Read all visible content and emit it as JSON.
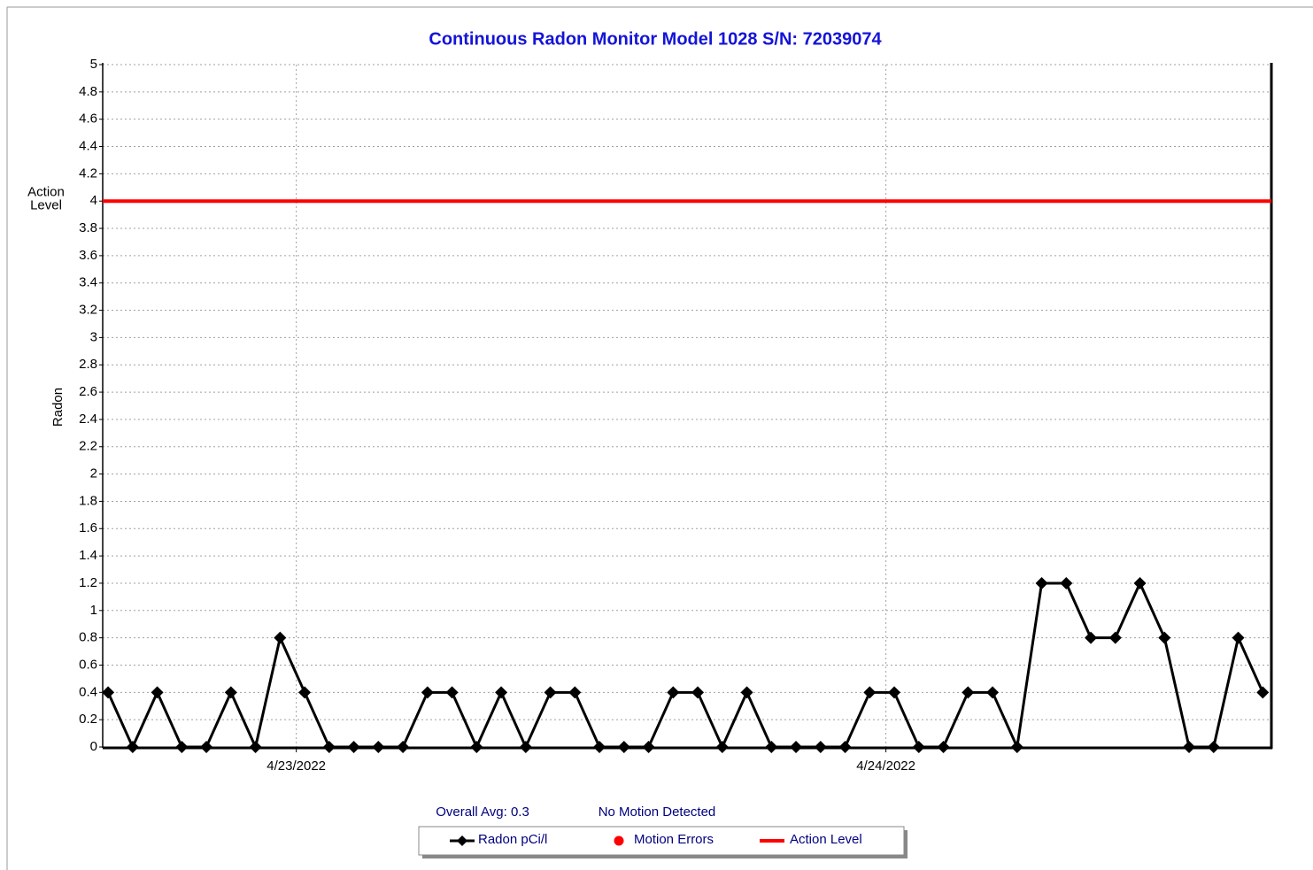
{
  "chart_data": {
    "type": "line",
    "title": "Continuous Radon Monitor Model 1028 S/N: 72039074",
    "ylabel": "Radon",
    "x": [
      0,
      1,
      2,
      3,
      4,
      5,
      6,
      7,
      8,
      9,
      10,
      11,
      12,
      13,
      14,
      15,
      16,
      17,
      18,
      19,
      20,
      21,
      22,
      23,
      24,
      25,
      26,
      27,
      28,
      29,
      30,
      31,
      32,
      33,
      34,
      35,
      36,
      37,
      38,
      39,
      40,
      41,
      42,
      43,
      44,
      45,
      46,
      47
    ],
    "xlim": [
      -0.22,
      47.35
    ],
    "xticks": [
      {
        "value": 7.66,
        "label": "4/23/2022"
      },
      {
        "value": 31.66,
        "label": "4/24/2022"
      }
    ],
    "ylim": [
      0,
      5
    ],
    "yticks": [
      0,
      0.2,
      0.4,
      0.6,
      0.8,
      1,
      1.2,
      1.4,
      1.6,
      1.8,
      2,
      2.2,
      2.4,
      2.6,
      2.8,
      3,
      3.2,
      3.4,
      3.6,
      3.8,
      4,
      4.2,
      4.4,
      4.6,
      4.8,
      5
    ],
    "grid": true,
    "series": [
      {
        "name": "Radon pCi/l",
        "color": "#000000",
        "marker": "diamond",
        "values": [
          0.4,
          0,
          0.4,
          0,
          0,
          0.4,
          0,
          0.8,
          0.4,
          0,
          0,
          0,
          0,
          0.4,
          0.4,
          0,
          0.4,
          0,
          0.4,
          0.4,
          0,
          0,
          0,
          0.4,
          0.4,
          0,
          0.4,
          0,
          0,
          0,
          0,
          0.4,
          0.4,
          0,
          0,
          0.4,
          0.4,
          0,
          1.2,
          1.2,
          0.8,
          0.8,
          1.2,
          0.8,
          0,
          0,
          0.8,
          0.4
        ]
      },
      {
        "name": "Motion Errors",
        "color": "#ff0000",
        "marker": "circle",
        "values": [
          null,
          null,
          null,
          null,
          null,
          null,
          null,
          null,
          null,
          null,
          null,
          null,
          null,
          null,
          null,
          null,
          null,
          null,
          null,
          null,
          null,
          null,
          null,
          null,
          null,
          null,
          null,
          null,
          null,
          null,
          null,
          null,
          null,
          null,
          null,
          null,
          null,
          null,
          null,
          null,
          null,
          null,
          null,
          null,
          null,
          null,
          null,
          null
        ]
      }
    ],
    "action_level": {
      "name": "Action Level",
      "value": 4,
      "color": "#ff0000",
      "label_lines": [
        "Action",
        "Level"
      ]
    },
    "annotations": [
      "Overall Avg: 0.3",
      "No Motion Detected"
    ]
  }
}
